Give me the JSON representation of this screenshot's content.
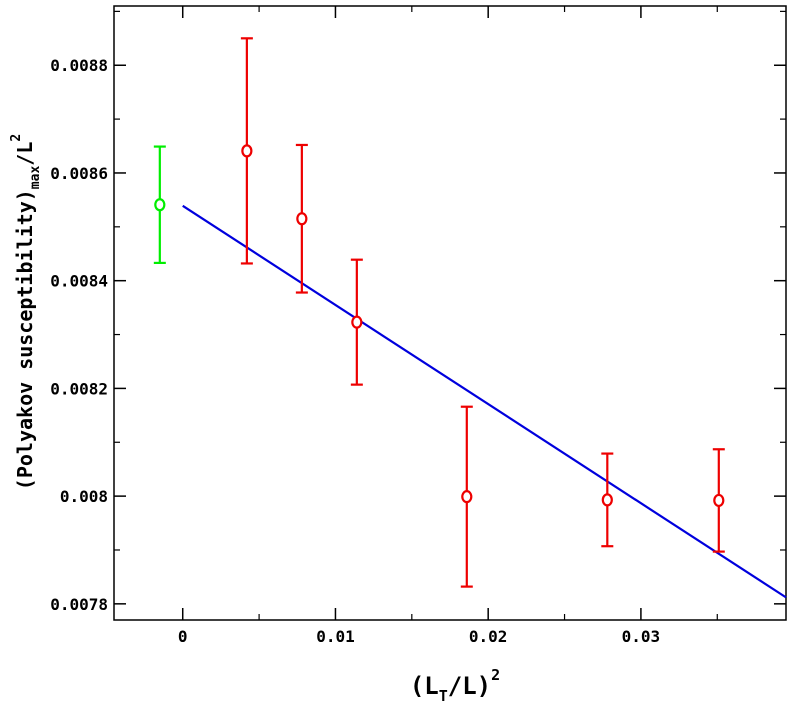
{
  "chart_data": {
    "type": "scatter",
    "xlabel": {
      "pre": "(L",
      "sub": "T",
      "post": "/L)",
      "sup": "2"
    },
    "ylabel": {
      "pre": "(Polyakov susceptibility)",
      "sub": "max",
      "post": "/L",
      "sup": "2"
    },
    "xlim": [
      -0.0045,
      0.0395
    ],
    "ylim": [
      0.00777,
      0.00891
    ],
    "xticks": [
      0,
      0.01,
      0.02,
      0.03
    ],
    "xtick_labels": [
      "0",
      "0.01",
      "0.02",
      "0.03"
    ],
    "yticks": [
      0.0078,
      0.008,
      0.0082,
      0.0084,
      0.0086,
      0.0088
    ],
    "ytick_labels": [
      "0.0078",
      "0.008",
      "0.0082",
      "0.0084",
      "0.0086",
      "0.0088"
    ],
    "grid": false,
    "legend": "none",
    "series": [
      {
        "color": "#00ee00",
        "points": [
          {
            "x": -0.0015,
            "y": 0.008541,
            "err": 0.000108
          }
        ]
      },
      {
        "color": "#ee0000",
        "points": [
          {
            "x": 0.0042,
            "y": 0.008641,
            "err": 0.000209
          },
          {
            "x": 0.0078,
            "y": 0.008515,
            "err": 0.000137
          },
          {
            "x": 0.0114,
            "y": 0.008323,
            "err": 0.000116
          },
          {
            "x": 0.0186,
            "y": 0.007999,
            "err": 0.000167
          },
          {
            "x": 0.0278,
            "y": 0.007993,
            "err": 8.6e-05
          },
          {
            "x": 0.0351,
            "y": 0.007992,
            "err": 9.5e-05
          }
        ]
      }
    ],
    "fit_line": {
      "color": "#0000dd",
      "x_start": 0.0,
      "y_start": 0.008539,
      "x_end": 0.0395,
      "y_end": 0.007812
    }
  }
}
